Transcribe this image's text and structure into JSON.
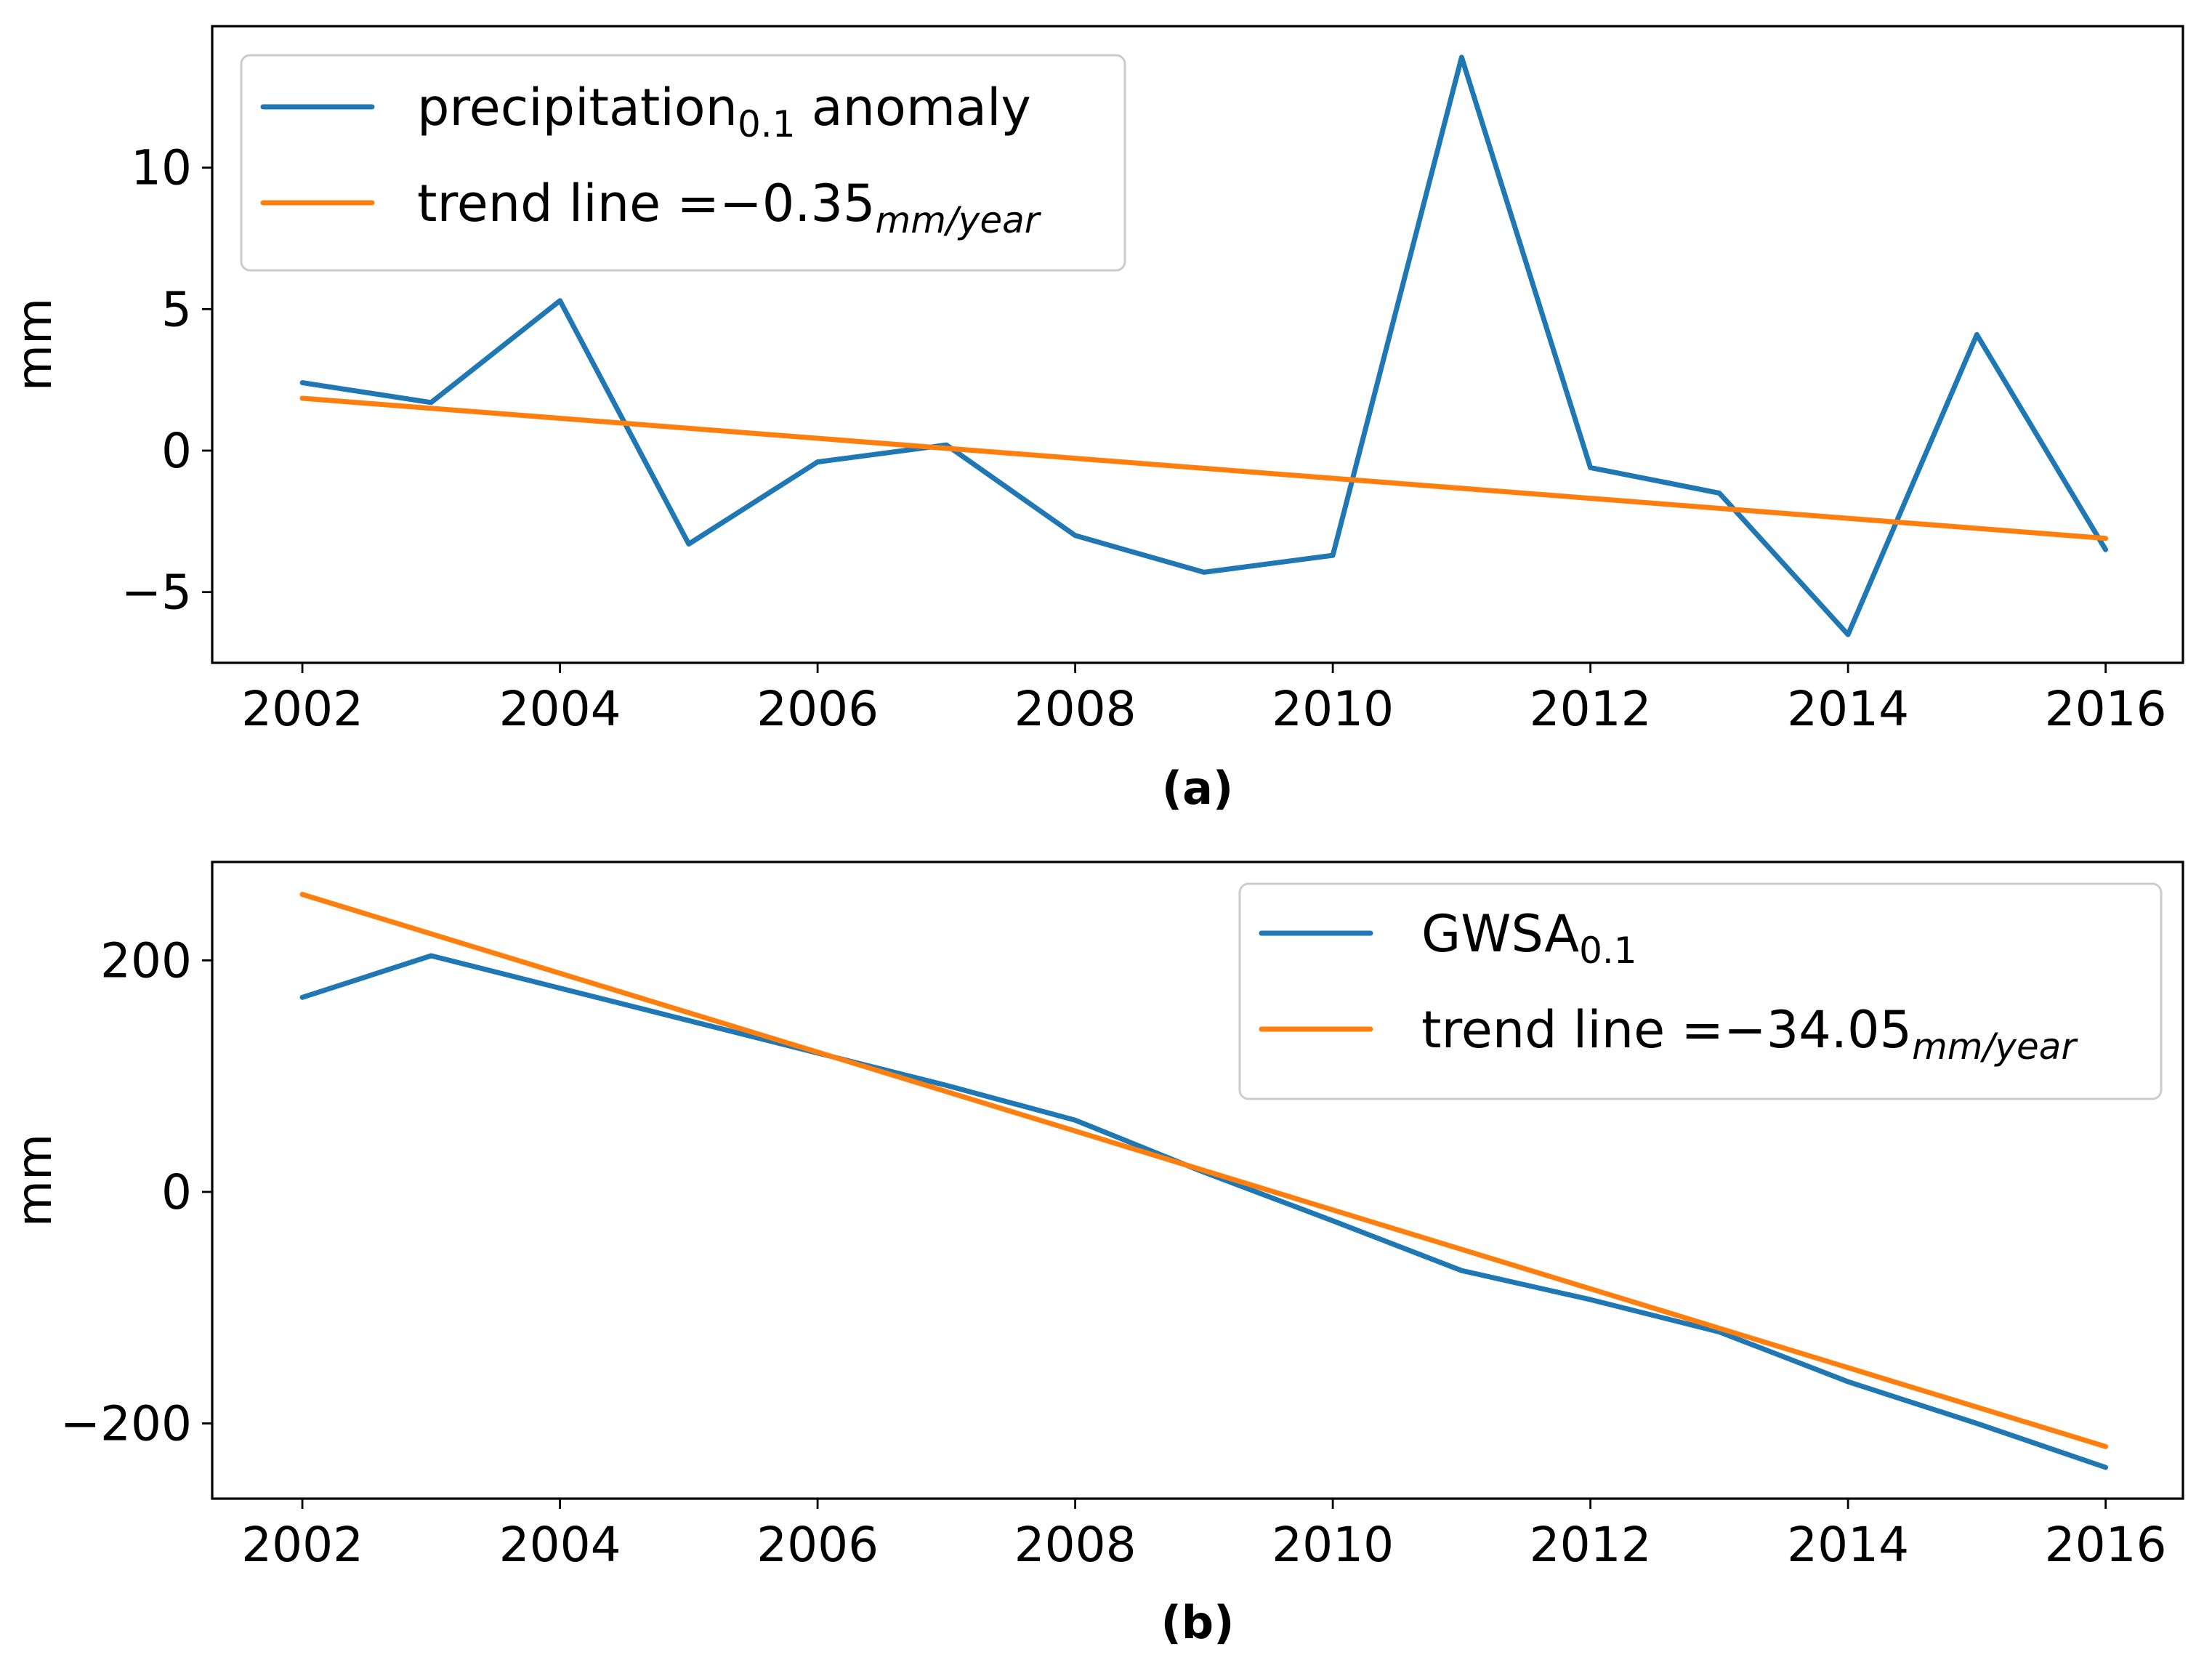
{
  "colors": {
    "series": "#1f77b4",
    "trend": "#ff7f0e"
  },
  "chart_data": [
    {
      "type": "line",
      "panel_label": "(a)",
      "title": "",
      "xlabel": "",
      "ylabel": "mm",
      "xlim": [
        2001.3,
        2016.6
      ],
      "ylim": [
        -7.5,
        15
      ],
      "xticks": [
        2002,
        2004,
        2006,
        2008,
        2010,
        2012,
        2014,
        2016
      ],
      "yticks": [
        -5,
        0,
        5,
        10
      ],
      "ytick_labels": [
        "−5",
        "0",
        "5",
        "10"
      ],
      "legend_position": "upper-left",
      "series": [
        {
          "name": "precipitation anomaly",
          "legend_main": "precipitation",
          "legend_sub": "0.1",
          "legend_suffix": " anomaly",
          "color_key": "series",
          "x": [
            2002,
            2003,
            2004,
            2005,
            2006,
            2007,
            2008,
            2009,
            2010,
            2011,
            2012,
            2013,
            2014,
            2015,
            2016
          ],
          "y": [
            2.4,
            1.7,
            5.3,
            -3.3,
            -0.4,
            0.2,
            -3.0,
            -4.3,
            -3.7,
            13.9,
            -0.6,
            -1.5,
            -6.5,
            4.1,
            -3.5
          ]
        },
        {
          "name": "trend line",
          "legend_main": "trend line =−0.35",
          "legend_sub": "mm/year",
          "legend_suffix": "",
          "color_key": "trend",
          "x": [
            2002,
            2016
          ],
          "y": [
            1.85,
            -3.1
          ]
        }
      ]
    },
    {
      "type": "line",
      "panel_label": "(b)",
      "title": "",
      "xlabel": "",
      "ylabel": "mm",
      "xlim": [
        2001.3,
        2016.6
      ],
      "ylim": [
        -265,
        285
      ],
      "xticks": [
        2002,
        2004,
        2006,
        2008,
        2010,
        2012,
        2014,
        2016
      ],
      "yticks": [
        -200,
        0,
        200
      ],
      "ytick_labels": [
        "−200",
        "0",
        "200"
      ],
      "legend_position": "upper-right",
      "series": [
        {
          "name": "GWSA",
          "legend_main": "GWSA",
          "legend_sub": "0.1",
          "legend_suffix": "",
          "color_key": "series",
          "x": [
            2002,
            2003,
            2004,
            2005,
            2006,
            2007,
            2008,
            2009,
            2010,
            2011,
            2012,
            2013,
            2014,
            2015,
            2016
          ],
          "y": [
            168,
            204,
            176,
            148,
            120,
            92,
            62,
            17,
            -25,
            -68,
            -93,
            -121,
            -164,
            -200,
            -238
          ]
        },
        {
          "name": "trend line",
          "legend_main": "trend line =−34.05",
          "legend_sub": "mm/year",
          "legend_suffix": "",
          "color_key": "trend",
          "x": [
            2002,
            2016
          ],
          "y": [
            257,
            -220
          ]
        }
      ]
    }
  ]
}
